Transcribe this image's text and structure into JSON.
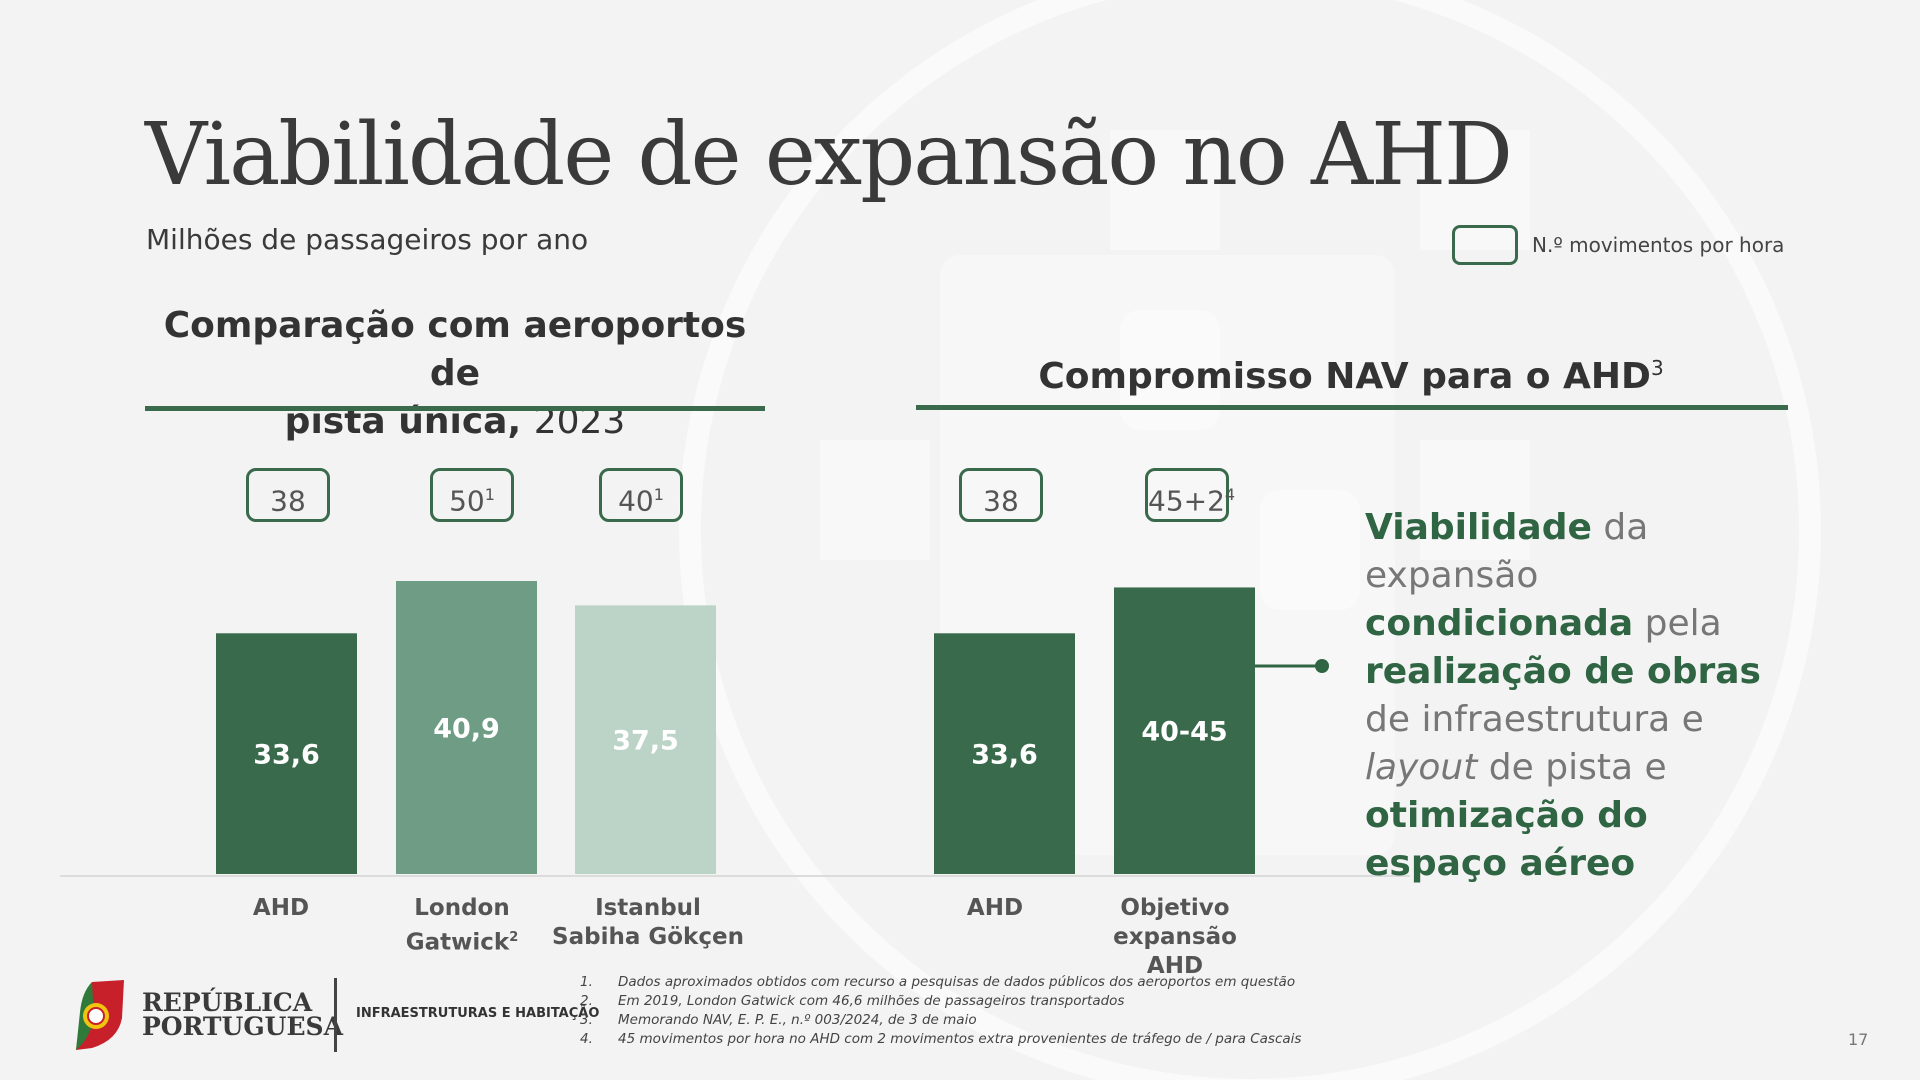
{
  "page": {
    "title": "Viabilidade de expansão no AHD",
    "subtitle": "Milhões de passageiros por ano",
    "legend_label": "N.º movimentos por hora",
    "left_section_title": "Comparação com aeroportos de",
    "left_section_title_2": "pista única,",
    "left_section_year": "2023",
    "right_section_title": "Compromisso NAV para o AHD",
    "right_section_sup": "3",
    "callout": {
      "w1": "Viabilidade",
      "w2": " da expansão ",
      "w3": "condicionada",
      "w4": " pela ",
      "w5": "realização de obras",
      "w6": " de infraestrutura e ",
      "w7": "layout",
      "w8": " de pista e ",
      "w9": "otimização do espaço aéreo"
    },
    "logo": {
      "line1": "REPÚBLICA",
      "line2": "PORTUGUESA",
      "ministry": "INFRAESTRUTURAS E HABITAÇÃO"
    },
    "footnotes": [
      {
        "n": "1.",
        "text": "Dados aproximados obtidos com recurso a pesquisas de dados públicos dos aeroportos em questão"
      },
      {
        "n": "2.",
        "text": "Em 2019, London Gatwick com 46,6 milhões de passageiros transportados"
      },
      {
        "n": "3.",
        "text": "Memorando NAV, E. P. E., n.º 003/2024, de 3 de maio"
      },
      {
        "n": "4.",
        "text": "45 movimentos por hora no AHD com 2 movimentos extra provenientes de tráfego de / para Cascais"
      }
    ],
    "page_number": "17"
  },
  "chart_data": {
    "type": "bar",
    "categories": [
      "AHD",
      "London Gatwick",
      "Istanbul Sabiha Gökçen",
      "AHD",
      "Objetivo expansão AHD"
    ],
    "category_lines": [
      [
        "AHD"
      ],
      [
        "London",
        "Gatwick"
      ],
      [
        "Istanbul",
        "Sabiha Gökçen"
      ],
      [
        "AHD"
      ],
      [
        "Objetivo expansão",
        "AHD"
      ]
    ],
    "category_sups": [
      "",
      "2",
      "",
      "",
      ""
    ],
    "values": [
      33.6,
      40.9,
      37.5,
      33.6,
      40
    ],
    "value_labels": [
      "33,6",
      "40,9",
      "37,5",
      "33,6",
      "40-45"
    ],
    "range_high": [
      null,
      null,
      null,
      null,
      45
    ],
    "movements_per_hour": [
      {
        "value": "38",
        "sup": ""
      },
      {
        "value": "50",
        "sup": "1"
      },
      {
        "value": "40",
        "sup": "1"
      },
      {
        "value": "38",
        "sup": ""
      },
      {
        "value": "45+2",
        "sup": "4"
      }
    ],
    "groups": [
      "Comparação com aeroportos de pista única, 2023",
      "Compromisso NAV para o AHD"
    ],
    "colors": [
      "#3a6a4c",
      "#6f9c85",
      "#bcd3c8",
      "#3a6a4c",
      "#3a6a4c"
    ],
    "ylabel": "Milhões de passageiros por ano",
    "ylim": [
      0,
      40.9
    ],
    "grid": false
  }
}
